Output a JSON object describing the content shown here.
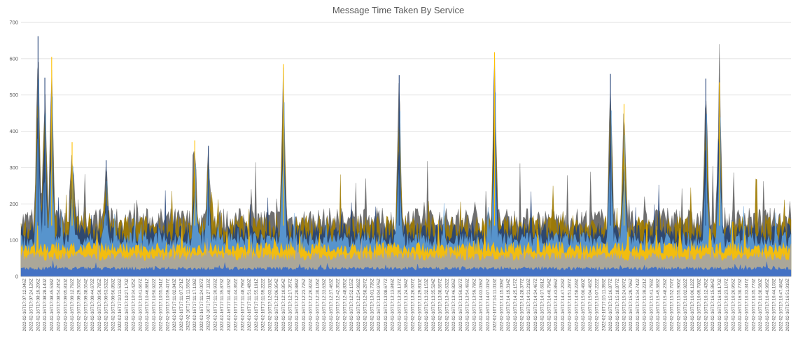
{
  "chart_data": {
    "type": "area",
    "title": "Message Time Taken By Service",
    "xlabel": "",
    "ylabel": "",
    "ylim": [
      0,
      700
    ],
    "yticks": [
      0,
      100,
      200,
      300,
      400,
      500,
      600,
      700
    ],
    "grid": true,
    "legend": "none",
    "series_colors": [
      "#4472C4",
      "#A5A5A5",
      "#FFC000",
      "#5B9BD5",
      "#264478",
      "#9E7A00",
      "#636363"
    ],
    "series_levels": [
      22,
      55,
      78,
      100,
      120,
      138,
      155
    ],
    "peak_values": [
      {
        "x": "2022-02-16T17:08:19.206Z",
        "y": 662
      },
      {
        "x": "2022-02-16T17:08:45.538Z",
        "y": 605
      },
      {
        "x": "2022-02-16T17:08:28.140Z",
        "y": 548
      },
      {
        "x": "2022-02-16T17:09:12.792Z",
        "y": 370
      },
      {
        "x": "2022-02-16T17:09:53.532Z",
        "y": 320
      },
      {
        "x": "2022-02-16T17:11:17.108Z",
        "y": 375
      },
      {
        "x": "2022-02-16T17:11:27.113Z",
        "y": 360
      },
      {
        "x": "2022-02-16T17:12:10.854Z",
        "y": 585
      },
      {
        "x": "2022-02-16T17:13:20.137Z",
        "y": 555
      },
      {
        "x": "2022-02-16T17:14:11.013Z",
        "y": 618
      },
      {
        "x": "2022-02-16T17:15:16.877Z",
        "y": 558
      },
      {
        "x": "2022-02-16T17:15:24.907Z",
        "y": 475
      },
      {
        "x": "2022-02-16T17:16:12.435Z",
        "y": 545
      },
      {
        "x": "2022-02-16T17:16:19.170Z",
        "y": 535
      }
    ],
    "categories": [
      "2022-02-16T17:07:12.046Z",
      "2022-02-16T17:07:24.126Z",
      "2022-02-16T17:08:19.206Z",
      "2022-02-16T17:08:28.140Z",
      "2022-02-16T17:08:45.538Z",
      "2022-02-16T17:08:54.245Z",
      "2022-02-16T17:09:05.810Z",
      "2022-02-16T17:09:12.792Z",
      "2022-02-16T17:09:29.503Z",
      "2022-02-16T17:09:38.554Z",
      "2022-02-16T17:09:44.672Z",
      "2022-02-16T17:09:50.785Z",
      "2022-02-16T17:09:53.532Z",
      "2022-02-16T17:09:56.858Z",
      "2022-02-16T17:10:11.533Z",
      "2022-02-16T17:10:27.170Z",
      "2022-02-16T17:10:34.425Z",
      "2022-02-16T17:10:41.667Z",
      "2022-02-16T17:10:46.881Z",
      "2022-02-16T17:10:50.922Z",
      "2022-02-16T17:10:55.541Z",
      "2022-02-16T17:10:59.417Z",
      "2022-02-16T17:11:02.843Z",
      "2022-02-16T17:11:07.271Z",
      "2022-02-16T17:11:11.556Z",
      "2022-02-16T17:11:17.108Z",
      "2022-02-16T17:11:24.007Z",
      "2022-02-16T17:11:27.113Z",
      "2022-02-16T17:11:30.933Z",
      "2022-02-16T17:11:35.873Z",
      "2022-02-16T17:11:40.078Z",
      "2022-02-16T17:11:44.362Z",
      "2022-02-16T17:11:48.796Z",
      "2022-02-16T17:11:51.489Z",
      "2022-02-16T17:11:55.191Z",
      "2022-02-16T17:11:59.222Z",
      "2022-02-16T17:12:03.018Z",
      "2022-02-16T17:12:06.954Z",
      "2022-02-16T17:12:10.854Z",
      "2022-02-16T17:12:17.357Z",
      "2022-02-16T17:12:20.889Z",
      "2022-02-16T17:12:23.725Z",
      "2022-02-16T17:12:26.823Z",
      "2022-02-16T17:12:30.106Z",
      "2022-02-16T17:12:33.639Z",
      "2022-02-16T17:12:37.463Z",
      "2022-02-16T17:12:42.352Z",
      "2022-02-16T17:12:48.835Z",
      "2022-02-16T17:12:52.155Z",
      "2022-02-16T17:12:54.992Z",
      "2022-02-16T17:12:58.297Z",
      "2022-02-16T17:13:01.735Z",
      "2022-02-16T17:13:04.976Z",
      "2022-02-16T17:13:08.677Z",
      "2022-02-16T17:13:13.849Z",
      "2022-02-16T17:13:20.137Z",
      "2022-02-16T17:13:24.384Z",
      "2022-02-16T17:13:26.637Z",
      "2022-02-16T17:13:29.810Z",
      "2022-02-16T17:13:32.153Z",
      "2022-02-16T17:13:35.524Z",
      "2022-02-16T17:13:38.597Z",
      "2022-02-16T17:13:42.632Z",
      "2022-02-16T17:13:46.826Z",
      "2022-02-16T17:13:50.927Z",
      "2022-02-16T17:13:54.493Z",
      "2022-02-16T17:13:59.786Z",
      "2022-02-16T17:14:03.036Z",
      "2022-02-16T17:14:07.015Z",
      "2022-02-16T17:14:11.013Z",
      "2022-02-16T17:14:15.009Z",
      "2022-02-16T17:14:19.314Z",
      "2022-02-16T17:14:25.157Z",
      "2022-02-16T17:14:28.377Z",
      "2022-02-16T17:14:31.219Z",
      "2022-02-16T17:14:34.467Z",
      "2022-02-16T17:14:37.691Z",
      "2022-02-16T17:14:40.794Z",
      "2022-02-16T17:14:43.856Z",
      "2022-02-16T17:14:47.203Z",
      "2022-02-16T17:14:51.287Z",
      "2022-02-16T17:14:58.228Z",
      "2022-02-16T17:15:00.490Z",
      "2022-02-16T17:15:04.493Z",
      "2022-02-16T17:15:07.222Z",
      "2022-02-16T17:15:11.393Z",
      "2022-02-16T17:15:16.877Z",
      "2022-02-16T17:15:18.877Z",
      "2022-02-16T17:15:24.907Z",
      "2022-02-16T17:15:29.796Z",
      "2022-02-16T17:15:34.742Z",
      "2022-02-16T17:15:38.221Z",
      "2022-02-16T17:15:41.793Z",
      "2022-02-16T17:15:45.383Z",
      "2022-02-16T17:15:48.239Z",
      "2022-02-16T17:15:52.707Z",
      "2022-02-16T17:15:55.906Z",
      "2022-02-16T17:16:02.922Z",
      "2022-02-16T17:16:06.122Z",
      "2022-02-16T17:16:09.708Z",
      "2022-02-16T17:16:12.435Z",
      "2022-02-16T17:16:15.864Z",
      "2022-02-16T17:16:19.170Z",
      "2022-02-16T17:16:23.107Z",
      "2022-02-16T17:16:26.956Z",
      "2022-02-16T17:16:30.773Z",
      "2022-02-16T17:16:33.347Z",
      "2022-02-16T17:16:35.773Z",
      "2022-02-16T17:16:38.580Z",
      "2022-02-16T17:16:40.995Z",
      "2022-02-16T17:16:44.103Z",
      "2022-02-16T17:16:47.464Z",
      "2022-02-16T17:16:51.919Z"
    ]
  }
}
